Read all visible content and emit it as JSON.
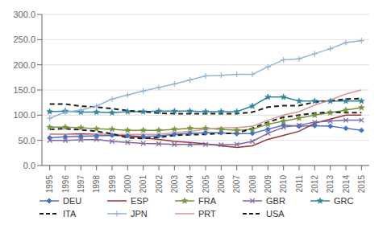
{
  "chart_data": {
    "type": "line",
    "x": [
      1995,
      1996,
      1997,
      1998,
      1999,
      2000,
      2001,
      2002,
      2003,
      2004,
      2005,
      2006,
      2007,
      2008,
      2009,
      2010,
      2011,
      2012,
      2013,
      2014,
      2015
    ],
    "series": [
      {
        "name": "DEU",
        "color": "#4472C4",
        "marker": "diamond",
        "line_style": "solid",
        "values": [
          55,
          57,
          58,
          59,
          60,
          59,
          58,
          59,
          62,
          64,
          65,
          65,
          63,
          64,
          72,
          80,
          78,
          79,
          78,
          74,
          70
        ]
      },
      {
        "name": "ESP",
        "color": "#943634",
        "marker": "none",
        "line_style": "solid",
        "values": [
          62,
          62,
          63,
          62,
          61,
          59,
          55,
          52,
          48,
          46,
          43,
          39,
          36,
          39,
          52,
          60,
          68,
          84,
          92,
          100,
          100
        ]
      },
      {
        "name": "FRA",
        "color": "#76923C",
        "marker": "star",
        "line_style": "solid",
        "values": [
          76,
          76,
          75,
          73,
          72,
          70,
          70,
          70,
          72,
          74,
          74,
          72,
          70,
          72,
          82,
          88,
          94,
          100,
          105,
          110,
          115
        ]
      },
      {
        "name": "GBR",
        "color": "#8064A2",
        "marker": "cross",
        "line_style": "solid",
        "values": [
          50,
          50,
          51,
          52,
          48,
          46,
          44,
          43,
          42,
          42,
          42,
          41,
          42,
          48,
          64,
          76,
          80,
          86,
          88,
          90,
          90
        ]
      },
      {
        "name": "GRC",
        "color": "#31849B",
        "marker": "star",
        "line_style": "solid",
        "values": [
          107,
          108,
          106,
          106,
          105,
          107,
          107,
          108,
          108,
          108,
          107,
          107,
          107,
          118,
          136,
          136,
          128,
          128,
          128,
          128,
          128
        ]
      },
      {
        "name": "ITA",
        "color": "#1F1F1F",
        "marker": "none",
        "line_style": "dashed",
        "values": [
          122,
          122,
          118,
          116,
          113,
          109,
          107,
          104,
          103,
          103,
          103,
          103,
          103,
          106,
          116,
          119,
          119,
          126,
          128,
          132,
          133
        ]
      },
      {
        "name": "JPN",
        "color": "#95B3D7",
        "marker": "plus",
        "line_style": "solid",
        "values": [
          94,
          106,
          110,
          118,
          132,
          140,
          148,
          155,
          162,
          170,
          178,
          179,
          181,
          181,
          196,
          210,
          212,
          222,
          232,
          244,
          248
        ]
      },
      {
        "name": "PRT",
        "color": "#D99694",
        "marker": "none",
        "line_style": "solid",
        "values": [
          62,
          62,
          61,
          62,
          62,
          62,
          62,
          62,
          65,
          68,
          72,
          75,
          75,
          78,
          90,
          100,
          107,
          120,
          130,
          142,
          150
        ]
      },
      {
        "name": "USA",
        "color": "#1F1F1F",
        "marker": "none",
        "line_style": "dashed",
        "values": [
          72,
          73,
          71,
          68,
          63,
          55,
          54,
          56,
          60,
          61,
          62,
          64,
          64,
          74,
          86,
          96,
          100,
          104,
          106,
          105,
          105
        ]
      }
    ],
    "xlim": [
      1994.5,
      2015.5
    ],
    "xticks": [
      1995,
      1996,
      1997,
      1998,
      1999,
      2000,
      2001,
      2002,
      2003,
      2004,
      2005,
      2006,
      2007,
      2008,
      2009,
      2010,
      2011,
      2012,
      2013,
      2014,
      2015
    ],
    "ylim": [
      0,
      300
    ],
    "yticks": [
      {
        "value": 0,
        "label": "0.0"
      },
      {
        "value": 50,
        "label": "50.0"
      },
      {
        "value": 100,
        "label": "100.0"
      },
      {
        "value": 150,
        "label": "150.0"
      },
      {
        "value": 200,
        "label": "200.0"
      },
      {
        "value": 250,
        "label": "250.0"
      },
      {
        "value": 300,
        "label": "300.0"
      }
    ],
    "grid": true,
    "legend": "bottom"
  }
}
